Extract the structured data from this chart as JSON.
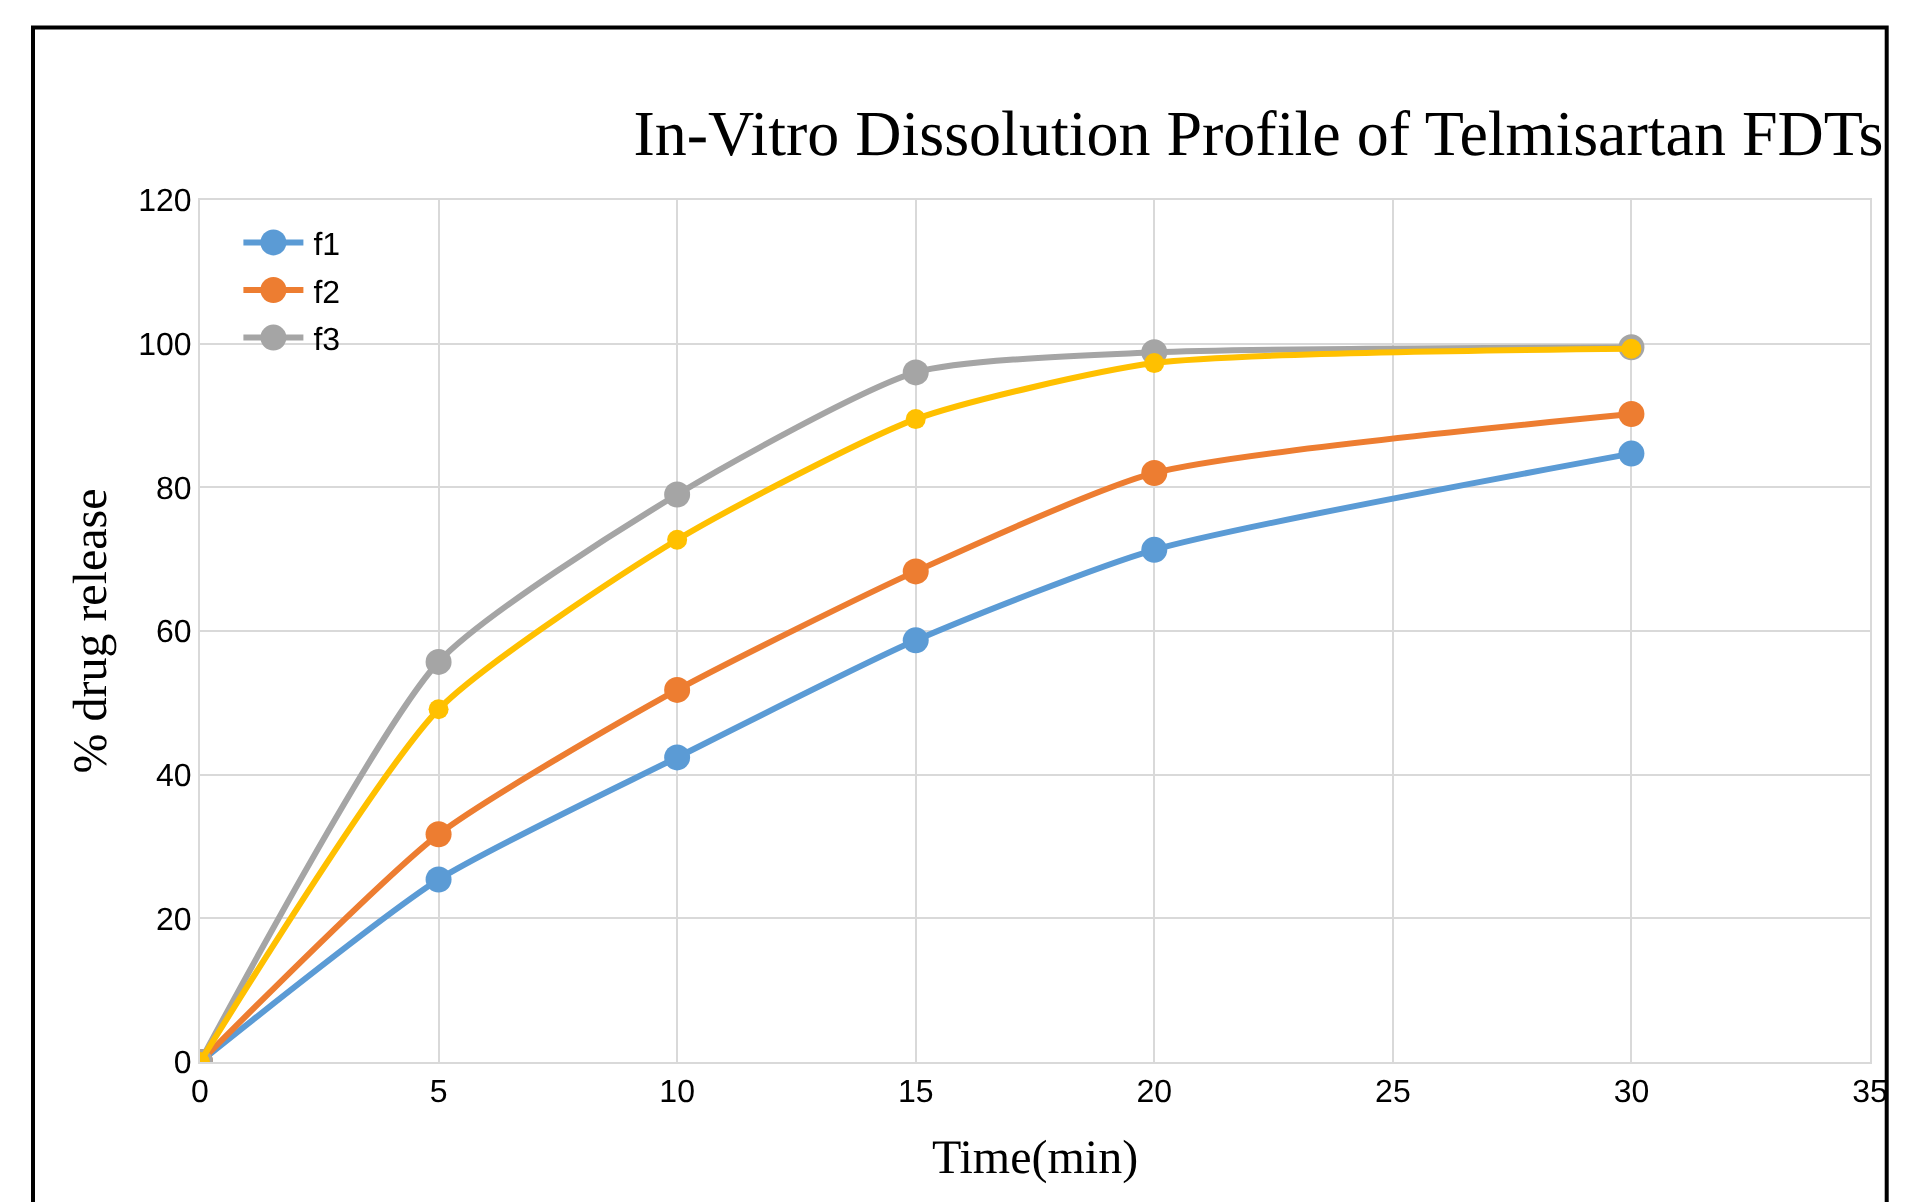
{
  "chart_data": {
    "type": "line",
    "title": "In-Vitro Dissolution Profile of Telmisartan FDTs",
    "xlabel": "Time(min)",
    "ylabel": "% drug release",
    "x": [
      0,
      5,
      10,
      15,
      20,
      30
    ],
    "series": [
      {
        "name": "f1",
        "color": "#5b9bd5",
        "values": [
          0,
          25.4,
          42.4,
          58.7,
          71.3,
          84.7
        ]
      },
      {
        "name": "f2",
        "color": "#ed7d31",
        "values": [
          0,
          31.7,
          51.8,
          68.3,
          82,
          90.2
        ]
      },
      {
        "name": "f3",
        "color": "#a5a5a5",
        "values": [
          0,
          55.7,
          79,
          96,
          98.8,
          99.5
        ]
      },
      {
        "color": "#ffc000",
        "values": [
          0,
          49.1,
          72.7,
          89.5,
          97.3,
          99.3
        ]
      }
    ],
    "xlim": [
      0,
      35
    ],
    "xticks": [
      0,
      5,
      10,
      15,
      20,
      25,
      30,
      35
    ],
    "ylim": [
      0,
      120
    ],
    "yticks": [
      0,
      20,
      40,
      60,
      80,
      100,
      120
    ],
    "grid": true,
    "legend": "top left",
    "marker": "circle",
    "line_style": "solid"
  }
}
